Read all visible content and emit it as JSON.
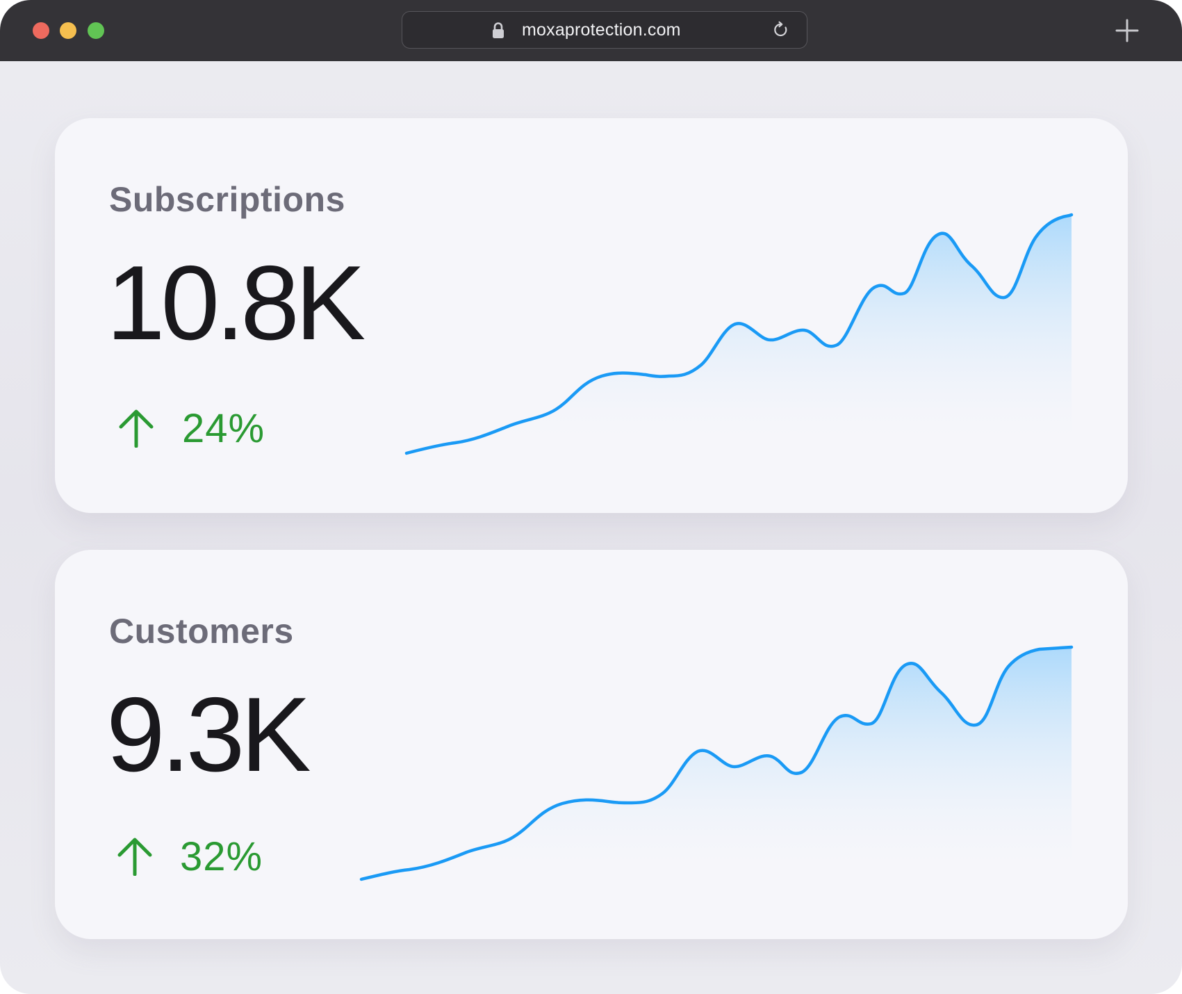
{
  "browser": {
    "url": "moxaprotection.com"
  },
  "cards": [
    {
      "title": "Subscriptions",
      "value": "10.8K",
      "change": "24%",
      "trend": "up"
    },
    {
      "title": "Customers",
      "value": "9.3K",
      "change": "32%",
      "trend": "up"
    }
  ],
  "colors": {
    "line": "#1a9af5",
    "fill_top": "#a9d8fb",
    "positive": "#2a9a32"
  },
  "icons": [
    "lock-icon",
    "reload-icon",
    "new-tab-icon",
    "arrow-up-icon"
  ]
}
